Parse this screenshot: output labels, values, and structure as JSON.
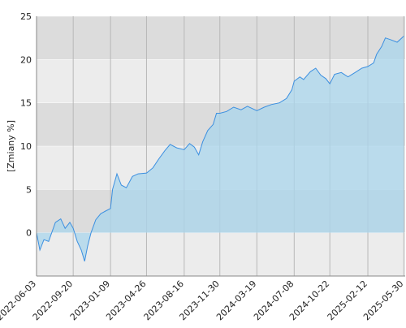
{
  "chart_data": {
    "type": "area",
    "y_label": "[Zmiany %]",
    "x": [
      "2022-06-03",
      "2022-06-13",
      "2022-06-25",
      "2022-07-09",
      "2022-07-29",
      "2022-08-14",
      "2022-08-27",
      "2022-09-10",
      "2022-09-20",
      "2022-10-02",
      "2022-10-14",
      "2022-10-24",
      "2022-11-02",
      "2022-11-12",
      "2022-11-26",
      "2022-12-11",
      "2022-12-25",
      "2023-01-09",
      "2023-01-15",
      "2023-01-28",
      "2023-02-10",
      "2023-02-25",
      "2023-03-15",
      "2023-04-01",
      "2023-04-26",
      "2023-05-15",
      "2023-06-01",
      "2023-06-20",
      "2023-07-05",
      "2023-07-25",
      "2023-08-16",
      "2023-09-01",
      "2023-09-15",
      "2023-09-28",
      "2023-10-10",
      "2023-10-25",
      "2023-11-10",
      "2023-11-20",
      "2023-11-30",
      "2023-12-20",
      "2024-01-10",
      "2024-02-01",
      "2024-02-20",
      "2024-03-19",
      "2024-04-10",
      "2024-05-01",
      "2024-05-25",
      "2024-06-15",
      "2024-07-01",
      "2024-07-08",
      "2024-07-25",
      "2024-08-05",
      "2024-08-25",
      "2024-09-10",
      "2024-09-25",
      "2024-10-10",
      "2024-10-22",
      "2024-11-05",
      "2024-11-25",
      "2024-12-15",
      "2025-01-05",
      "2025-01-25",
      "2025-02-12",
      "2025-03-01",
      "2025-03-10",
      "2025-03-25",
      "2025-04-05",
      "2025-04-20",
      "2025-05-10",
      "2025-05-30"
    ],
    "values": [
      0,
      -2,
      -0.8,
      -1,
      1.2,
      1.6,
      0.5,
      1.2,
      0.5,
      -1,
      -2,
      -3.3,
      -1.5,
      0,
      1.5,
      2.2,
      2.5,
      2.8,
      5,
      6.8,
      5.5,
      5.2,
      6.5,
      6.8,
      6.9,
      7.5,
      8.5,
      9.5,
      10.2,
      9.8,
      9.6,
      10.3,
      9.9,
      9,
      10.5,
      11.8,
      12.5,
      13.8,
      13.8,
      14,
      14.5,
      14.2,
      14.6,
      14.1,
      14.5,
      14.8,
      15,
      15.5,
      16.5,
      17.5,
      18,
      17.7,
      18.6,
      19,
      18.2,
      17.8,
      17.2,
      18.3,
      18.5,
      18,
      18.5,
      19,
      19.2,
      19.6,
      20.6,
      21.5,
      22.5,
      22.3,
      22,
      22.7
    ],
    "color": "#3b8fe0",
    "fill": "#a9d6ec",
    "xlim": [
      "2022-06-03",
      "2025-06-03"
    ],
    "xticks": [
      "2022-06-03",
      "2022-09-20",
      "2023-01-09",
      "2023-04-26",
      "2023-08-16",
      "2023-11-30",
      "2024-03-19",
      "2024-07-08",
      "2024-10-22",
      "2025-02-12",
      "2025-05-30"
    ],
    "ylim": [
      -5,
      25
    ],
    "yticks": [
      0,
      5,
      10,
      15,
      20,
      25
    ],
    "grid": true
  }
}
